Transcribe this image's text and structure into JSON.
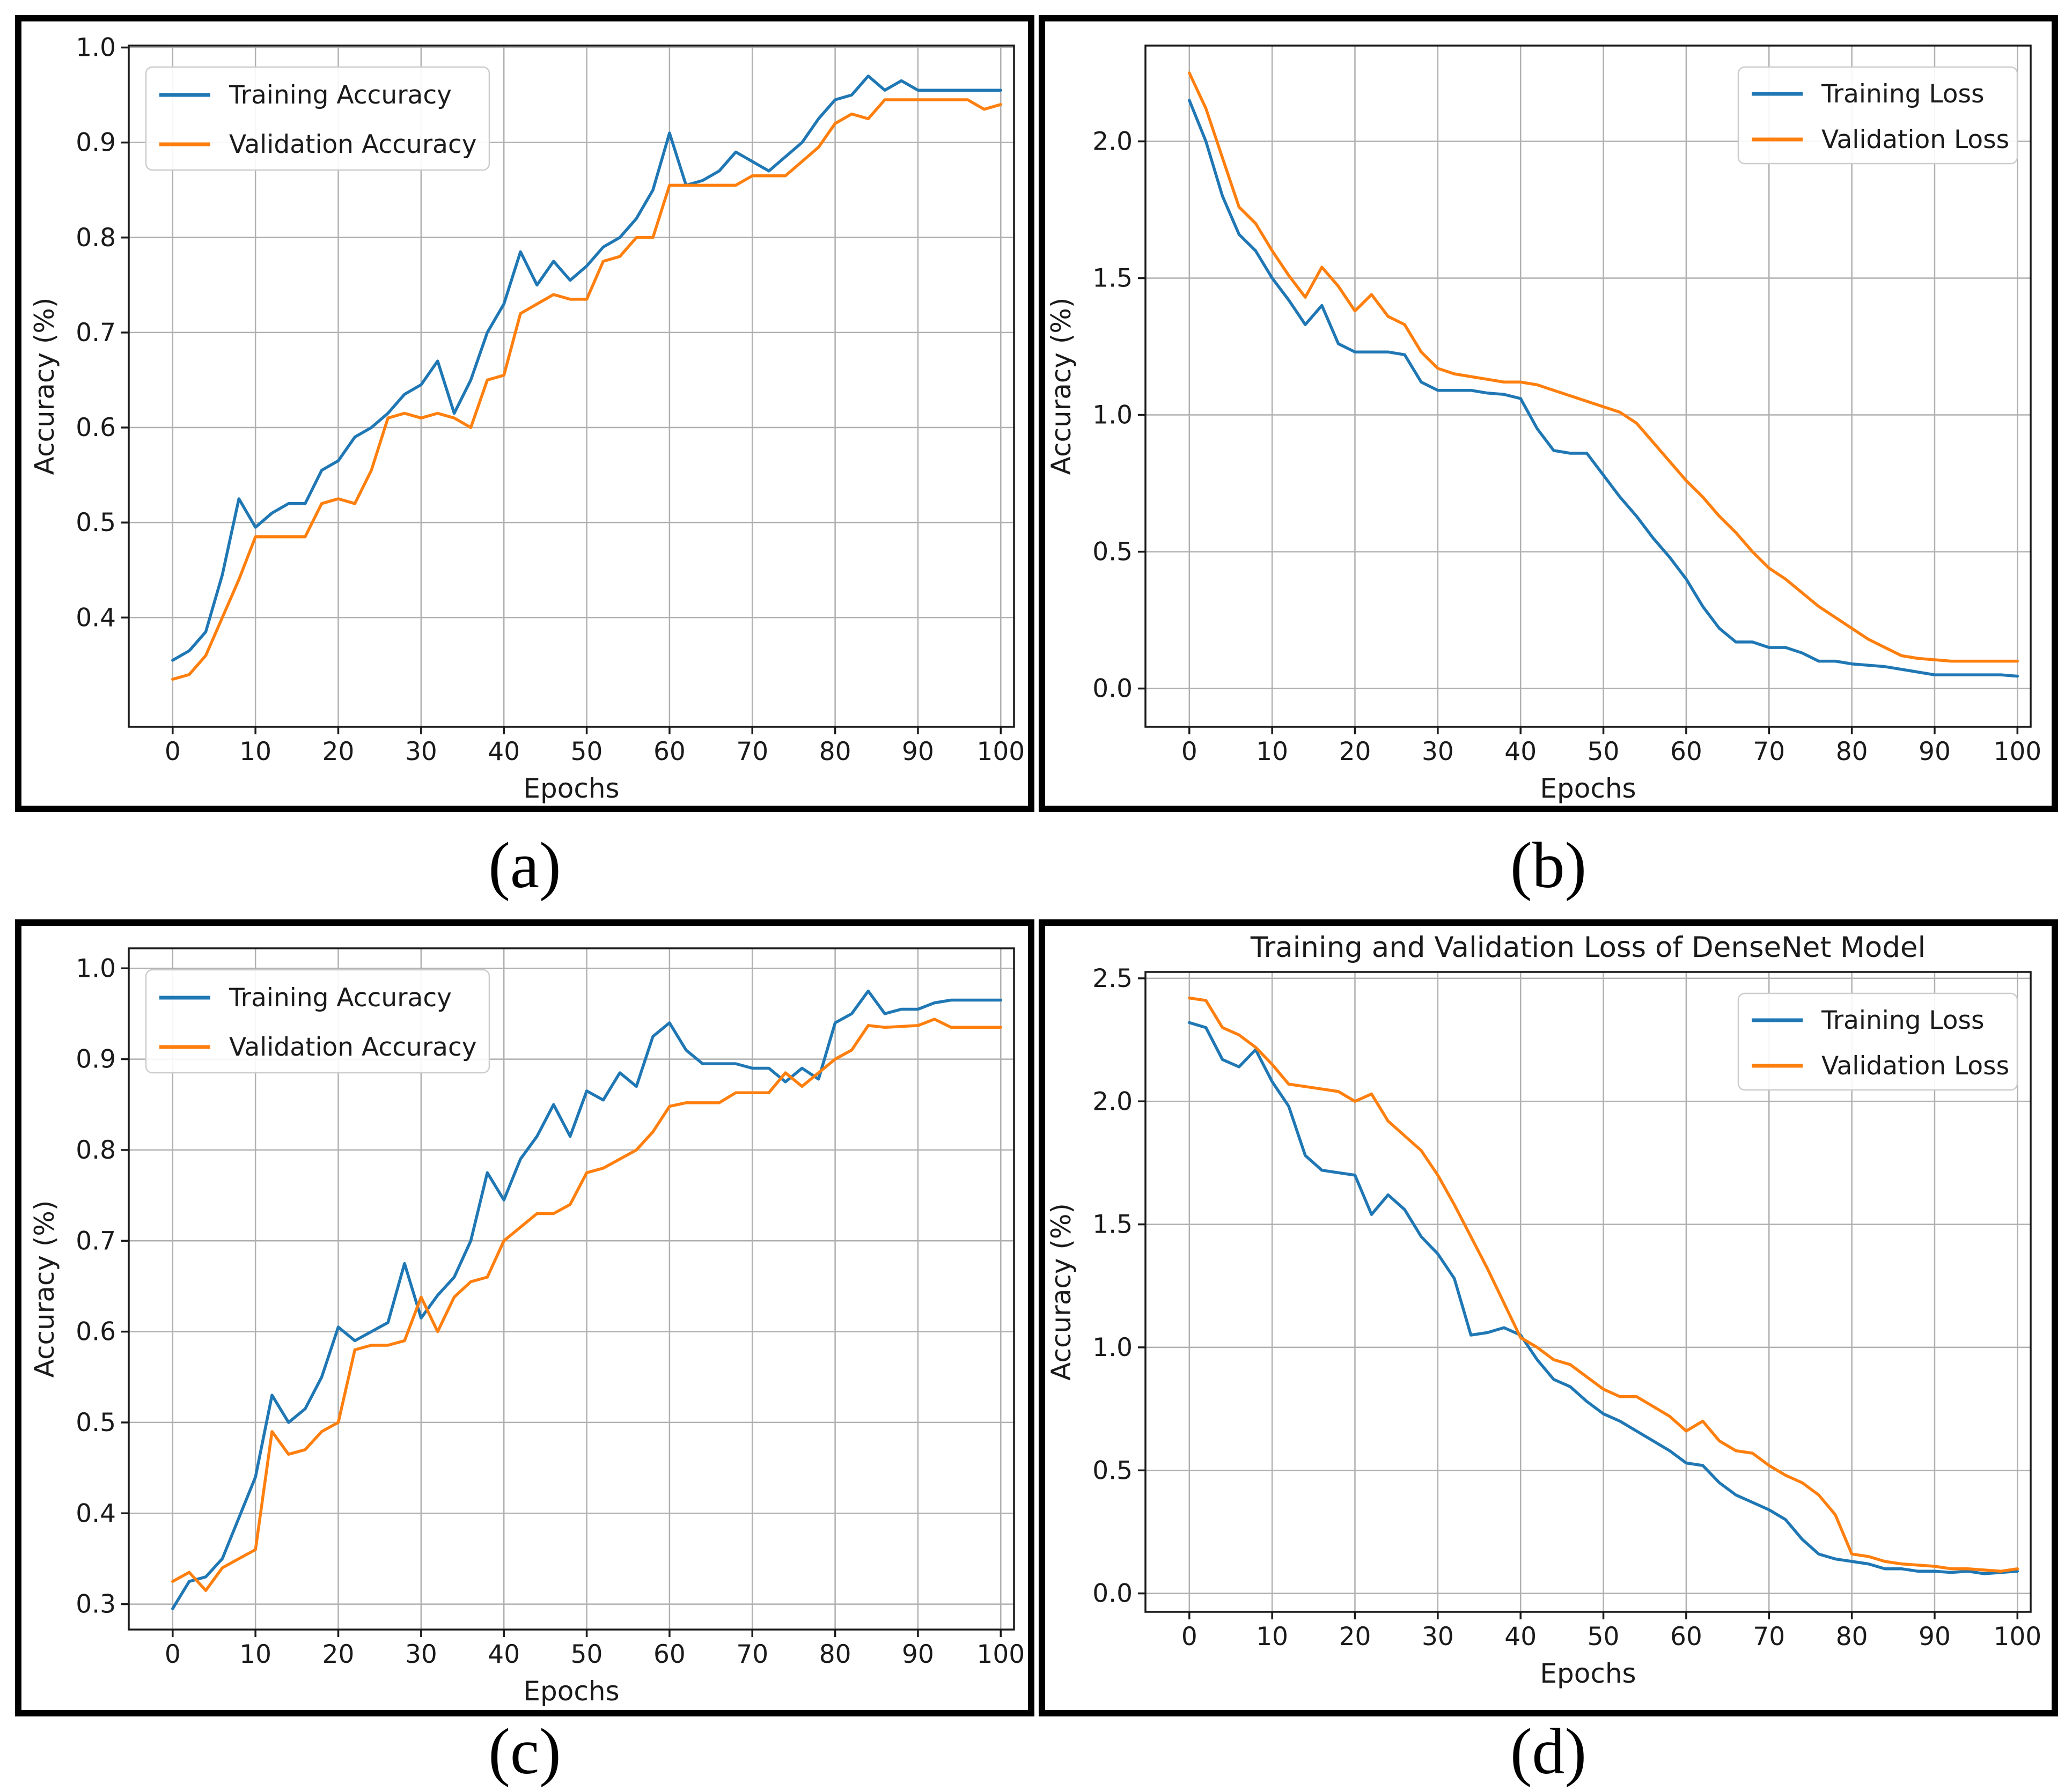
{
  "figure": {
    "captions": {
      "a": "(a)",
      "b": "(b)",
      "c": "(c)",
      "d": "(d)"
    }
  },
  "colors": {
    "training": "#1f77b4",
    "validation": "#ff7f0e",
    "grid": "#b0b0b0",
    "spine": "#1a1a1a",
    "text": "#1a1a1a",
    "legend_border": "#cccccc",
    "panel_border": "#000000"
  },
  "chart_data": [
    {
      "id": "a",
      "type": "line",
      "title": "",
      "xlabel": "Epochs",
      "ylabel": "Accuracy (%)",
      "xlim": [
        -5.3,
        101.6
      ],
      "ylim": [
        0.285,
        1.002
      ],
      "xticks": [
        0,
        10,
        20,
        30,
        40,
        50,
        60,
        70,
        80,
        90,
        100
      ],
      "yticks": [
        0.4,
        0.5,
        0.6,
        0.7,
        0.8,
        0.9,
        1.0
      ],
      "grid": true,
      "legend": {
        "position": "upper-left",
        "entries": [
          "Training Accuracy",
          "Validation Accuracy"
        ]
      },
      "x_start": 0,
      "x_step": 2,
      "series": [
        {
          "name": "Training Accuracy",
          "color_key": "training",
          "values": [
            0.355,
            0.365,
            0.385,
            0.445,
            0.525,
            0.495,
            0.51,
            0.52,
            0.52,
            0.555,
            0.565,
            0.59,
            0.6,
            0.615,
            0.635,
            0.645,
            0.67,
            0.615,
            0.65,
            0.7,
            0.73,
            0.785,
            0.75,
            0.775,
            0.755,
            0.77,
            0.79,
            0.8,
            0.82,
            0.85,
            0.91,
            0.855,
            0.86,
            0.87,
            0.89,
            0.88,
            0.87,
            0.885,
            0.9,
            0.925,
            0.945,
            0.95,
            0.97,
            0.955,
            0.965,
            0.955,
            0.955,
            0.955,
            0.955,
            0.955,
            0.955
          ]
        },
        {
          "name": "Validation Accuracy",
          "color_key": "validation",
          "values": [
            0.335,
            0.34,
            0.36,
            0.4,
            0.44,
            0.485,
            0.485,
            0.485,
            0.485,
            0.52,
            0.525,
            0.52,
            0.555,
            0.61,
            0.615,
            0.61,
            0.615,
            0.61,
            0.6,
            0.65,
            0.655,
            0.72,
            0.73,
            0.74,
            0.735,
            0.735,
            0.775,
            0.78,
            0.8,
            0.8,
            0.855,
            0.855,
            0.855,
            0.855,
            0.855,
            0.865,
            0.865,
            0.865,
            0.88,
            0.895,
            0.92,
            0.93,
            0.925,
            0.945,
            0.945,
            0.945,
            0.945,
            0.945,
            0.945,
            0.935,
            0.94
          ]
        }
      ]
    },
    {
      "id": "b",
      "type": "line",
      "title": "",
      "xlabel": "Epochs",
      "ylabel": "Accuracy (%)",
      "xlim": [
        -5.3,
        101.6
      ],
      "ylim": [
        -0.14,
        2.35
      ],
      "xticks": [
        0,
        10,
        20,
        30,
        40,
        50,
        60,
        70,
        80,
        90,
        100
      ],
      "yticks": [
        0.0,
        0.5,
        1.0,
        1.5,
        2.0
      ],
      "grid": true,
      "legend": {
        "position": "upper-right",
        "entries": [
          "Training Loss",
          "Validation Loss"
        ]
      },
      "x_start": 0,
      "x_step": 2,
      "series": [
        {
          "name": "Training Loss",
          "color_key": "training",
          "values": [
            2.15,
            2.0,
            1.8,
            1.66,
            1.6,
            1.5,
            1.42,
            1.33,
            1.4,
            1.26,
            1.23,
            1.23,
            1.23,
            1.22,
            1.12,
            1.09,
            1.09,
            1.09,
            1.08,
            1.075,
            1.06,
            0.95,
            0.87,
            0.86,
            0.86,
            0.78,
            0.7,
            0.63,
            0.55,
            0.48,
            0.4,
            0.3,
            0.22,
            0.17,
            0.17,
            0.15,
            0.15,
            0.13,
            0.1,
            0.1,
            0.09,
            0.085,
            0.08,
            0.07,
            0.06,
            0.05,
            0.05,
            0.05,
            0.05,
            0.05,
            0.045
          ]
        },
        {
          "name": "Validation Loss",
          "color_key": "validation",
          "values": [
            2.25,
            2.12,
            1.94,
            1.76,
            1.7,
            1.6,
            1.51,
            1.43,
            1.54,
            1.47,
            1.38,
            1.44,
            1.36,
            1.33,
            1.23,
            1.17,
            1.15,
            1.14,
            1.13,
            1.12,
            1.12,
            1.11,
            1.09,
            1.07,
            1.05,
            1.03,
            1.01,
            0.97,
            0.9,
            0.83,
            0.76,
            0.7,
            0.63,
            0.57,
            0.5,
            0.44,
            0.4,
            0.35,
            0.3,
            0.26,
            0.22,
            0.18,
            0.15,
            0.12,
            0.11,
            0.105,
            0.1,
            0.1,
            0.1,
            0.1,
            0.1
          ]
        }
      ]
    },
    {
      "id": "c",
      "type": "line",
      "title": "",
      "xlabel": "Epochs",
      "ylabel": "Accuracy (%)",
      "xlim": [
        -5.3,
        101.6
      ],
      "ylim": [
        0.272,
        1.022
      ],
      "xticks": [
        0,
        10,
        20,
        30,
        40,
        50,
        60,
        70,
        80,
        90,
        100
      ],
      "yticks": [
        0.3,
        0.4,
        0.5,
        0.6,
        0.7,
        0.8,
        0.9,
        1.0
      ],
      "grid": true,
      "legend": {
        "position": "upper-left",
        "entries": [
          "Training Accuracy",
          "Validation Accuracy"
        ]
      },
      "x_start": 0,
      "x_step": 2,
      "series": [
        {
          "name": "Training Accuracy",
          "color_key": "training",
          "values": [
            0.295,
            0.325,
            0.33,
            0.35,
            0.395,
            0.44,
            0.53,
            0.5,
            0.515,
            0.55,
            0.605,
            0.59,
            0.6,
            0.61,
            0.675,
            0.615,
            0.64,
            0.66,
            0.7,
            0.775,
            0.745,
            0.79,
            0.815,
            0.85,
            0.815,
            0.865,
            0.855,
            0.885,
            0.87,
            0.925,
            0.94,
            0.91,
            0.895,
            0.895,
            0.895,
            0.89,
            0.89,
            0.875,
            0.89,
            0.878,
            0.94,
            0.95,
            0.975,
            0.95,
            0.955,
            0.955,
            0.962,
            0.965,
            0.965,
            0.965,
            0.965
          ]
        },
        {
          "name": "Validation Accuracy",
          "color_key": "validation",
          "values": [
            0.325,
            0.335,
            0.315,
            0.34,
            0.35,
            0.36,
            0.49,
            0.465,
            0.47,
            0.49,
            0.5,
            0.58,
            0.585,
            0.585,
            0.59,
            0.638,
            0.6,
            0.638,
            0.655,
            0.66,
            0.7,
            0.715,
            0.73,
            0.73,
            0.74,
            0.775,
            0.78,
            0.79,
            0.8,
            0.82,
            0.848,
            0.852,
            0.852,
            0.852,
            0.863,
            0.863,
            0.863,
            0.885,
            0.87,
            0.885,
            0.9,
            0.91,
            0.937,
            0.935,
            0.936,
            0.937,
            0.944,
            0.935,
            0.935,
            0.935,
            0.935
          ]
        }
      ]
    },
    {
      "id": "d",
      "type": "line",
      "title": "Training and Validation Loss of DenseNet Model",
      "xlabel": "Epochs",
      "ylabel": "Accuracy (%)",
      "xlim": [
        -5.3,
        101.6
      ],
      "ylim": [
        -0.075,
        2.526
      ],
      "xticks": [
        0,
        10,
        20,
        30,
        40,
        50,
        60,
        70,
        80,
        90,
        100
      ],
      "yticks": [
        0.0,
        0.5,
        1.0,
        1.5,
        2.0,
        2.5
      ],
      "grid": true,
      "legend": {
        "position": "upper-right",
        "entries": [
          "Training Loss",
          "Validation Loss"
        ]
      },
      "x_start": 0,
      "x_step": 2,
      "series": [
        {
          "name": "Training Loss",
          "color_key": "training",
          "values": [
            2.32,
            2.3,
            2.17,
            2.14,
            2.21,
            2.08,
            1.98,
            1.78,
            1.72,
            1.71,
            1.7,
            1.54,
            1.62,
            1.56,
            1.45,
            1.38,
            1.28,
            1.05,
            1.06,
            1.08,
            1.05,
            0.95,
            0.87,
            0.84,
            0.78,
            0.73,
            0.7,
            0.66,
            0.62,
            0.58,
            0.53,
            0.52,
            0.45,
            0.4,
            0.37,
            0.34,
            0.3,
            0.22,
            0.16,
            0.14,
            0.13,
            0.12,
            0.1,
            0.1,
            0.09,
            0.09,
            0.085,
            0.09,
            0.08,
            0.085,
            0.09
          ]
        },
        {
          "name": "Validation Loss",
          "color_key": "validation",
          "values": [
            2.42,
            2.41,
            2.3,
            2.27,
            2.22,
            2.15,
            2.07,
            2.06,
            2.05,
            2.04,
            2.0,
            2.03,
            1.92,
            1.86,
            1.8,
            1.7,
            1.58,
            1.45,
            1.32,
            1.18,
            1.04,
            1.0,
            0.95,
            0.93,
            0.88,
            0.83,
            0.8,
            0.8,
            0.76,
            0.72,
            0.66,
            0.7,
            0.62,
            0.58,
            0.57,
            0.52,
            0.48,
            0.45,
            0.4,
            0.32,
            0.16,
            0.15,
            0.13,
            0.12,
            0.115,
            0.11,
            0.1,
            0.1,
            0.095,
            0.09,
            0.1
          ]
        }
      ]
    }
  ]
}
